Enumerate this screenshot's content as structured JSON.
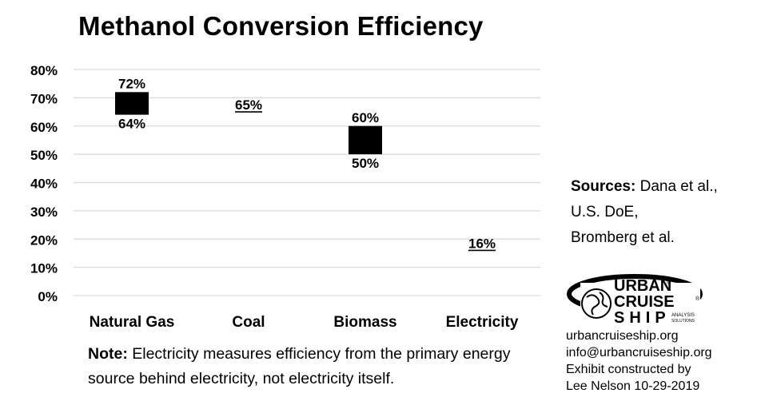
{
  "title": "Methanol Conversion Efficiency",
  "chart_data": {
    "type": "floating-bar",
    "title": "Methanol Conversion Efficiency",
    "categories": [
      "Natural Gas",
      "Coal",
      "Biomass",
      "Electricity"
    ],
    "series": [
      {
        "values": [
          {
            "low": 64,
            "high": 72
          },
          {
            "low": 65,
            "high": 65
          },
          {
            "low": 50,
            "high": 60
          },
          {
            "low": 16,
            "high": 16
          }
        ]
      }
    ],
    "data_labels": [
      {
        "category": "Natural Gas",
        "labels": [
          "72%",
          "64%"
        ]
      },
      {
        "category": "Coal",
        "labels": [
          "65%"
        ]
      },
      {
        "category": "Biomass",
        "labels": [
          "60%",
          "50%"
        ]
      },
      {
        "category": "Electricity",
        "labels": [
          "16%"
        ]
      }
    ],
    "y_ticks": [
      "0%",
      "10%",
      "20%",
      "30%",
      "40%",
      "50%",
      "60%",
      "70%",
      "80%"
    ],
    "ylim": [
      0,
      80
    ],
    "grid": true,
    "legend": "none",
    "bar_color": "#000000",
    "grid_color": "#d9d9d9"
  },
  "sources": {
    "heading": "Sources:",
    "line1": "Dana et al.,",
    "line2": "U.S. DoE,",
    "line3": "Bromberg et al."
  },
  "note": {
    "heading": "Note:",
    "text": "Electricity measures efficiency from the primary energy source behind electricity, not electricity itself."
  },
  "logo": {
    "line1": "URBAN",
    "line2": "CRUISE",
    "line3": "SHIP",
    "tag1": "ANALYSIS",
    "tag2": "SOLUTIONS",
    "mark": "®"
  },
  "contact": {
    "website": "urbancruiseship.org",
    "email": "info@urbancruiseship.org",
    "credit1": "Exhibit constructed by",
    "credit2": "Lee Nelson 10-29-2019"
  }
}
